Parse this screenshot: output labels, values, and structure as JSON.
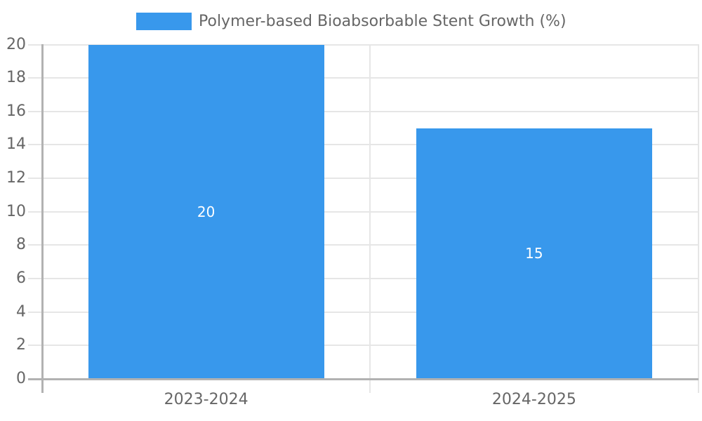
{
  "chart_data": {
    "type": "bar",
    "title": "",
    "categories": [
      "2023-2024",
      "2024-2025"
    ],
    "series": [
      {
        "name": "Polymer-based Bioabsorbable Stent Growth (%)",
        "values": [
          20,
          15
        ]
      }
    ],
    "values": [
      20,
      15
    ],
    "bar_value_labels": [
      "20",
      "15"
    ],
    "xlabel": "",
    "ylabel": "",
    "ylim": [
      0,
      20
    ],
    "yticks": [
      0,
      2,
      4,
      6,
      8,
      10,
      12,
      14,
      16,
      18,
      20
    ],
    "grid": true,
    "legend_position": "top",
    "colors": {
      "bar": "#3898EC",
      "grid": "#E6E6E6",
      "axis": "#B2B2B2",
      "tick_text": "#666666",
      "legend_text": "#666666",
      "bar_label": "#FFFFFF",
      "background": "#FFFFFF"
    }
  }
}
